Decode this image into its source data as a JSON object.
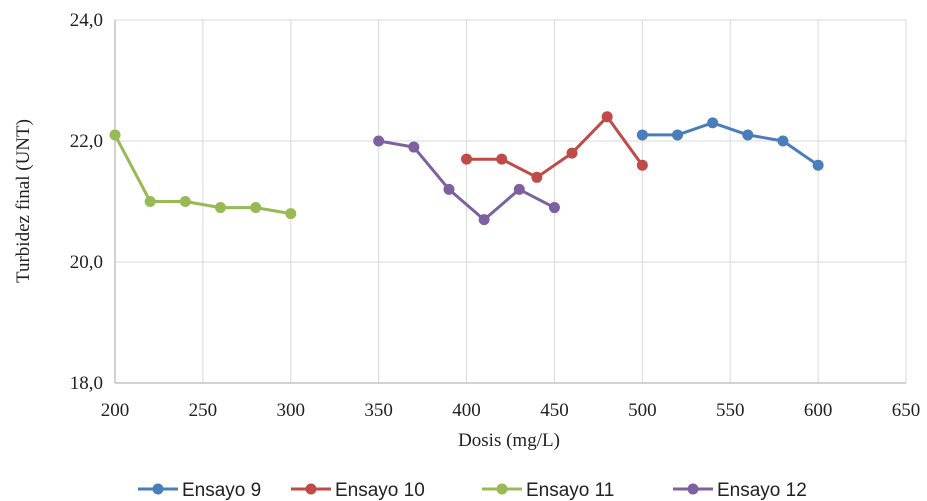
{
  "chart_data": {
    "type": "line",
    "xlabel": "Dosis (mg/L)",
    "ylabel": "Turbidez final (UNT)",
    "xlim": [
      200,
      650
    ],
    "ylim": [
      18,
      24
    ],
    "xticks": [
      200,
      250,
      300,
      350,
      400,
      450,
      500,
      550,
      600,
      650
    ],
    "yticks": [
      18,
      20,
      22,
      24
    ],
    "ytick_labels": [
      "18,0",
      "20,0",
      "22,0",
      "24,0"
    ],
    "grid": true,
    "legend_position": "bottom",
    "series": [
      {
        "name": "Ensayo 9",
        "color": "#4a7ebb",
        "x": [
          500,
          520,
          540,
          560,
          580,
          600
        ],
        "y": [
          22.1,
          22.1,
          22.3,
          22.1,
          22.0,
          21.6
        ]
      },
      {
        "name": "Ensayo 10",
        "color": "#be4b48",
        "x": [
          400,
          420,
          440,
          460,
          480,
          500
        ],
        "y": [
          21.7,
          21.7,
          21.4,
          21.8,
          22.4,
          21.6
        ]
      },
      {
        "name": "Ensayo 11",
        "color": "#98b954",
        "x": [
          200,
          220,
          240,
          260,
          280,
          300
        ],
        "y": [
          22.1,
          21.0,
          21.0,
          20.9,
          20.9,
          20.8
        ]
      },
      {
        "name": "Ensayo 12",
        "color": "#7d60a0",
        "x": [
          350,
          370,
          390,
          410,
          430,
          450
        ],
        "y": [
          22.0,
          21.9,
          21.2,
          20.7,
          21.2,
          20.9
        ]
      }
    ]
  }
}
